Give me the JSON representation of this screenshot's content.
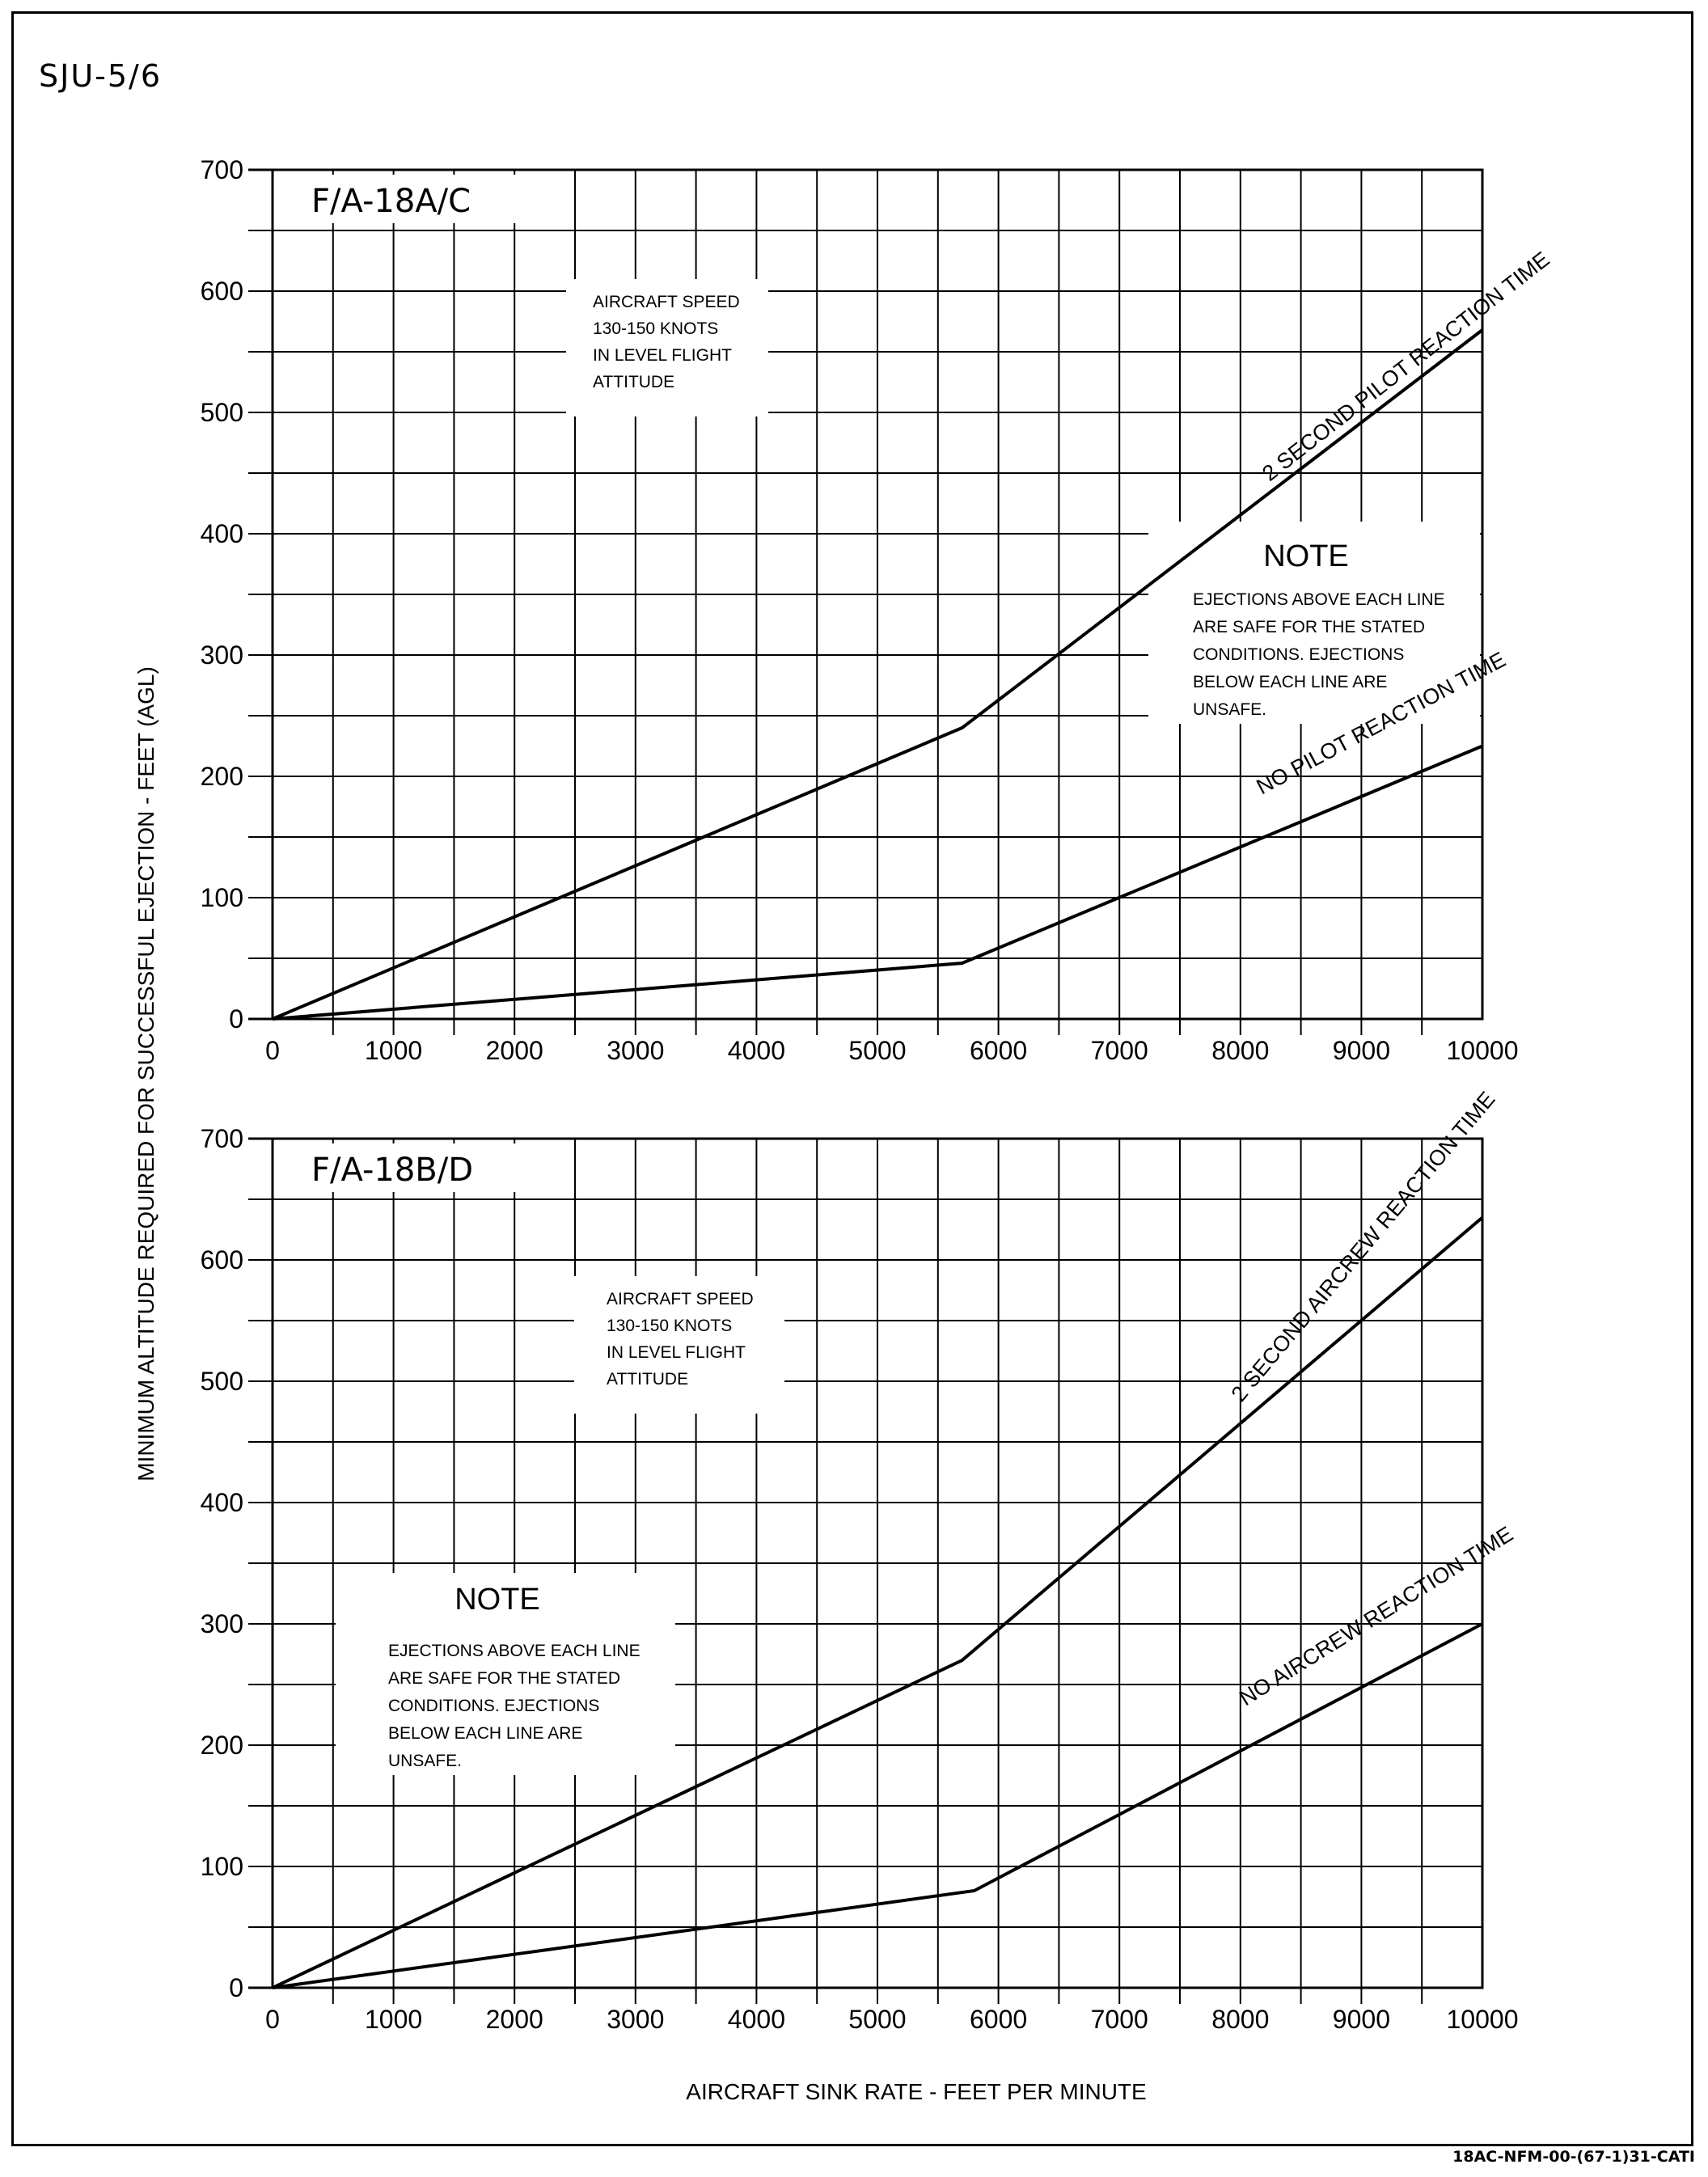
{
  "figure_id": "SJU-5/6",
  "document_code": "18AC-NFM-00-(67-1)31-CATI",
  "y_axis_label": "MINIMUM ALTITUDE REQUIRED FOR SUCCESSFUL EJECTION - FEET (AGL)",
  "x_axis_label": "AIRCRAFT SINK RATE - FEET PER MINUTE",
  "chart_data": [
    {
      "type": "line",
      "title": "F/A-18A/C",
      "xlim": [
        0,
        10000
      ],
      "ylim": [
        0,
        700
      ],
      "x_ticks": [
        "0",
        "1000",
        "2000",
        "3000",
        "4000",
        "5000",
        "6000",
        "7000",
        "8000",
        "9000",
        "10000"
      ],
      "y_ticks": [
        "0",
        "100",
        "200",
        "300",
        "400",
        "500",
        "600",
        "700"
      ],
      "grid": true,
      "speed_note": [
        "AIRCRAFT SPEED",
        "130-150 KNOTS",
        "IN LEVEL FLIGHT",
        "ATTITUDE"
      ],
      "note": {
        "heading": "NOTE",
        "lines": [
          "EJECTIONS ABOVE EACH LINE",
          "ARE SAFE FOR THE STATED",
          "CONDITIONS. EJECTIONS",
          "BELOW EACH LINE ARE",
          "UNSAFE."
        ]
      },
      "series": [
        {
          "name": "2 SECOND PILOT REACTION TIME",
          "x": [
            0,
            5700,
            10000
          ],
          "y": [
            0,
            240,
            568
          ]
        },
        {
          "name": "NO PILOT REACTION TIME",
          "x": [
            0,
            5700,
            10000
          ],
          "y": [
            0,
            46,
            225
          ]
        }
      ]
    },
    {
      "type": "line",
      "title": "F/A-18B/D",
      "xlim": [
        0,
        10000
      ],
      "ylim": [
        0,
        700
      ],
      "x_ticks": [
        "0",
        "1000",
        "2000",
        "3000",
        "4000",
        "5000",
        "6000",
        "7000",
        "8000",
        "9000",
        "10000"
      ],
      "y_ticks": [
        "0",
        "100",
        "200",
        "300",
        "400",
        "500",
        "600",
        "700"
      ],
      "grid": true,
      "speed_note": [
        "AIRCRAFT SPEED",
        "130-150 KNOTS",
        "IN LEVEL FLIGHT",
        "ATTITUDE"
      ],
      "note": {
        "heading": "NOTE",
        "lines": [
          "EJECTIONS ABOVE EACH LINE",
          "ARE SAFE FOR THE STATED",
          "CONDITIONS. EJECTIONS",
          "BELOW EACH LINE ARE",
          "UNSAFE."
        ]
      },
      "series": [
        {
          "name": "2 SECOND AIRCREW REACTION TIME",
          "x": [
            0,
            5700,
            10000
          ],
          "y": [
            0,
            270,
            635
          ]
        },
        {
          "name": "NO AIRCREW REACTION TIME",
          "x": [
            0,
            5800,
            10000
          ],
          "y": [
            0,
            80,
            300
          ]
        }
      ]
    }
  ]
}
